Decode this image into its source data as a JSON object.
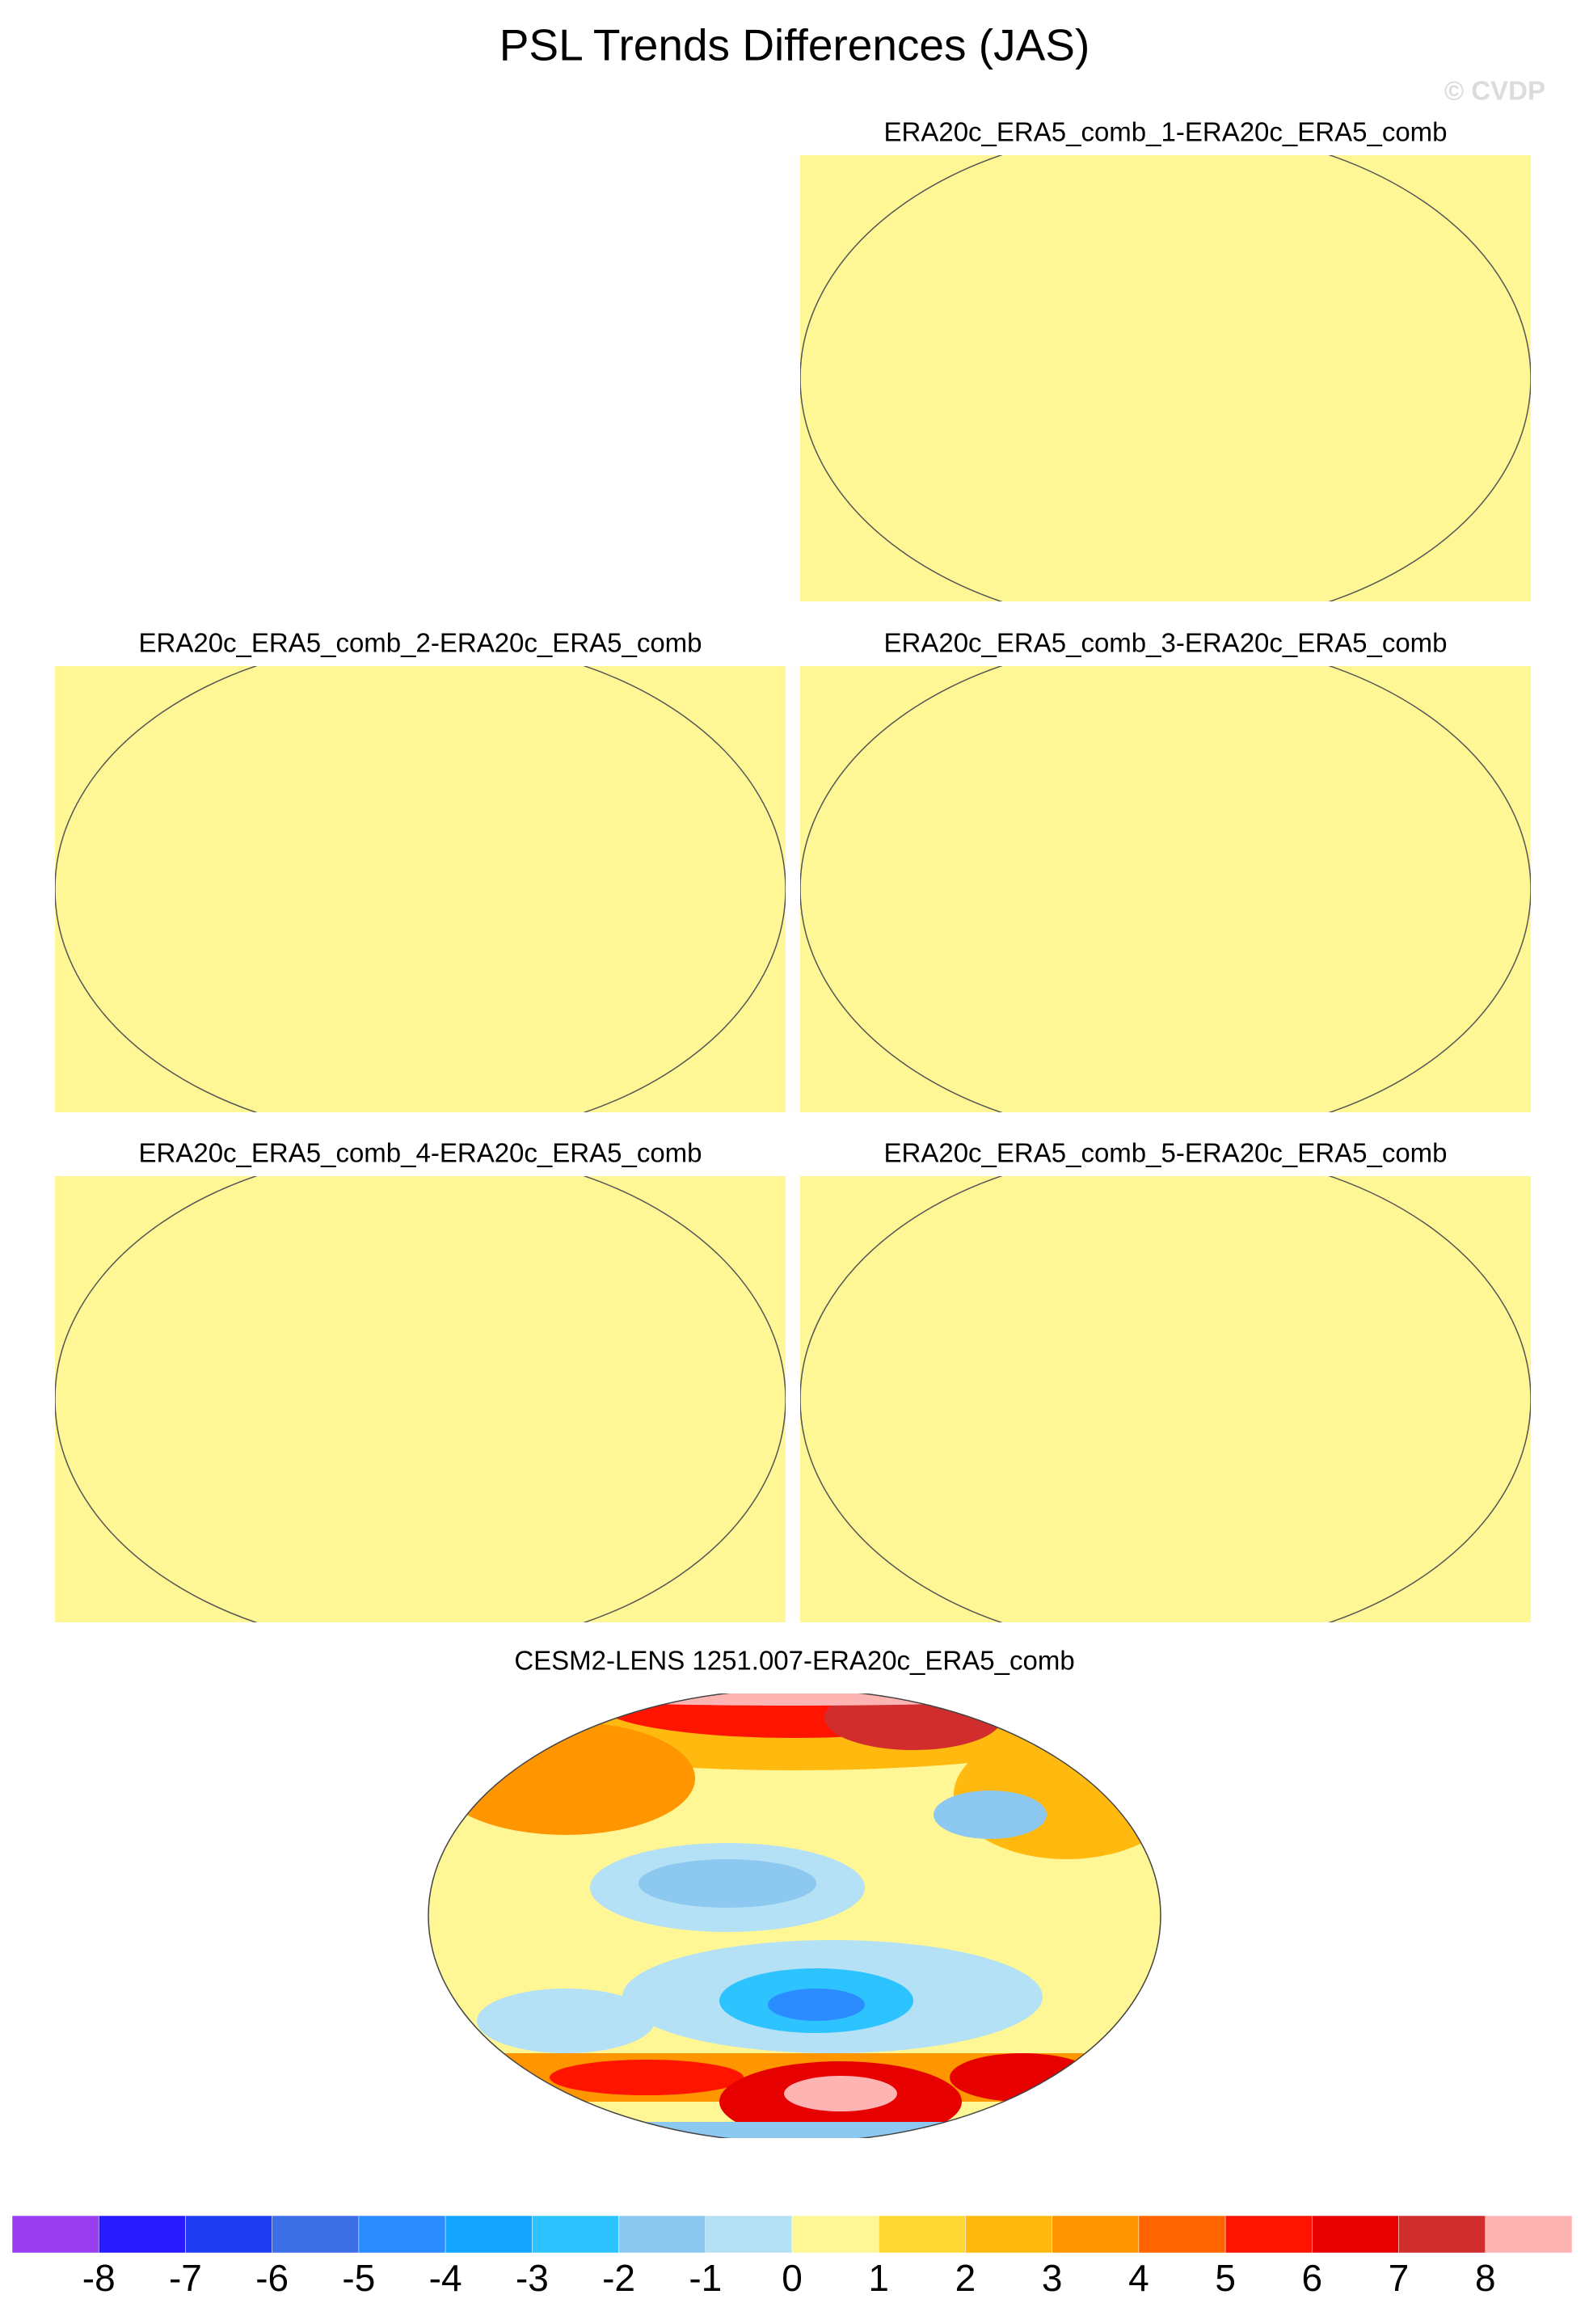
{
  "title": "PSL Trends Differences (JAS)",
  "watermark": "© CVDP",
  "panels": [
    {
      "title": "ERA20c_ERA5_comb_1-ERA20c_ERA5_comb"
    },
    {
      "title": "ERA20c_ERA5_comb_2-ERA20c_ERA5_comb"
    },
    {
      "title": "ERA20c_ERA5_comb_3-ERA20c_ERA5_comb"
    },
    {
      "title": "ERA20c_ERA5_comb_4-ERA20c_ERA5_comb"
    },
    {
      "title": "ERA20c_ERA5_comb_5-ERA20c_ERA5_comb"
    },
    {
      "title": "CESM2-LENS 1251.007-ERA20c_ERA5_comb"
    }
  ],
  "colorbar": {
    "colors": [
      "#9a3ff0",
      "#2a1aff",
      "#1e3cf0",
      "#3c6ee6",
      "#2a8cff",
      "#14a5ff",
      "#2dc3ff",
      "#8cc8f0",
      "#b4e1f5",
      "#fff796",
      "#ffd732",
      "#ffb90f",
      "#ff9600",
      "#ff6400",
      "#ff1400",
      "#e60000",
      "#d22d2d",
      "#ffb4b4"
    ],
    "labels": [
      -8,
      -7,
      -6,
      -5,
      -4,
      -3,
      -2,
      -1,
      0,
      1,
      2,
      3,
      4,
      5,
      6,
      7,
      8
    ]
  }
}
